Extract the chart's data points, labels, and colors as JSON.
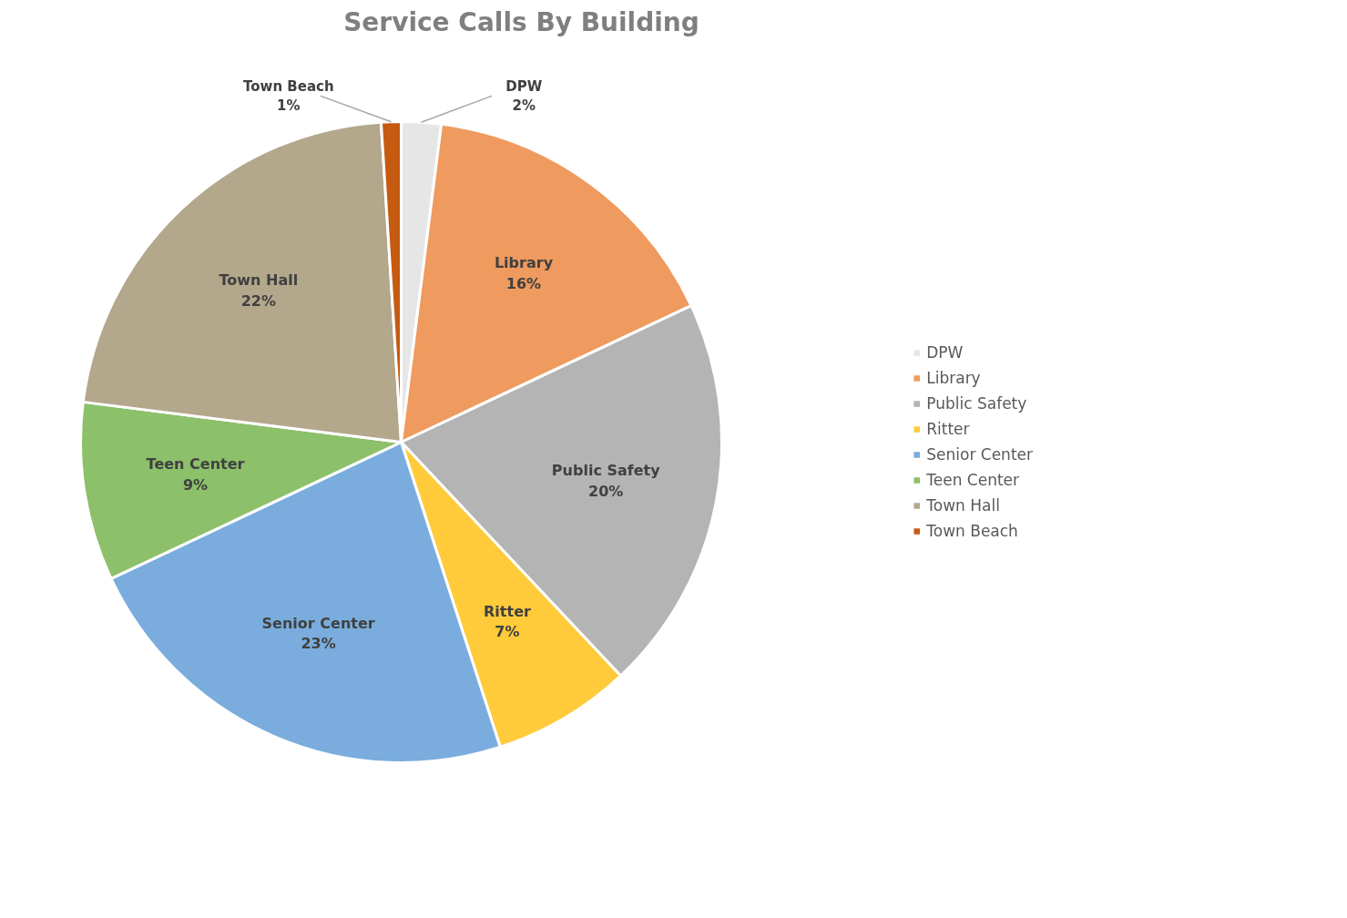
{
  "chart_data": {
    "type": "pie",
    "title": "Service Calls By Building",
    "categories": [
      "DPW",
      "Library",
      "Public Safety",
      "Ritter",
      "Senior Center",
      "Teen Center",
      "Town Hall",
      "Town Beach"
    ],
    "values": [
      2,
      16,
      20,
      7,
      23,
      9,
      22,
      1
    ],
    "colors": [
      "#e7e6e6",
      "#ef9a5e",
      "#b4b4b4",
      "#ffcb3a",
      "#7aaddd",
      "#8cc06a",
      "#b3a78c",
      "#c55a11"
    ],
    "value_labels": [
      "2%",
      "16%",
      "20%",
      "7%",
      "23%",
      "9%",
      "22%",
      "1%"
    ],
    "legend": "right"
  }
}
